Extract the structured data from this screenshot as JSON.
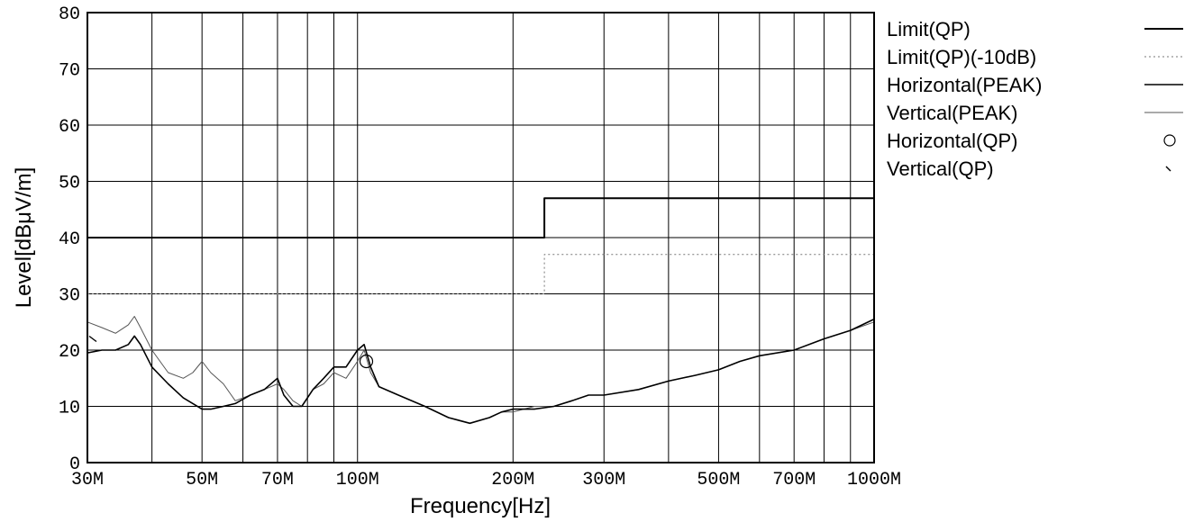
{
  "chart_data": {
    "type": "line",
    "xlabel": "Frequency[Hz]",
    "ylabel": "Level[dBμV/m]",
    "x_scale": "log",
    "xlim": [
      30,
      1000
    ],
    "ylim": [
      0,
      80
    ],
    "grid": true,
    "legend_position": "right",
    "x_minor_gridlines": [
      40,
      60,
      80,
      90,
      400,
      600,
      800,
      900
    ],
    "x_ticks": [
      {
        "value": 30,
        "label": "30M"
      },
      {
        "value": 50,
        "label": "50M"
      },
      {
        "value": 70,
        "label": "70M"
      },
      {
        "value": 100,
        "label": "100M"
      },
      {
        "value": 200,
        "label": "200M"
      },
      {
        "value": 300,
        "label": "300M"
      },
      {
        "value": 500,
        "label": "500M"
      },
      {
        "value": 700,
        "label": "700M"
      },
      {
        "value": 1000,
        "label": "1000M"
      }
    ],
    "y_ticks": [
      {
        "value": 0,
        "label": "0"
      },
      {
        "value": 10,
        "label": "10"
      },
      {
        "value": 20,
        "label": "20"
      },
      {
        "value": 30,
        "label": "30"
      },
      {
        "value": 40,
        "label": "40"
      },
      {
        "value": 50,
        "label": "50"
      },
      {
        "value": 60,
        "label": "60"
      },
      {
        "value": 70,
        "label": "70"
      },
      {
        "value": 80,
        "label": "80"
      }
    ],
    "series": [
      {
        "name": "Limit(QP)",
        "style": "solid-thick",
        "color": "#000000",
        "x": [
          30,
          230,
          230,
          1000
        ],
        "y": [
          40,
          40,
          47,
          47
        ]
      },
      {
        "name": "Limit(QP)(-10dB)",
        "style": "dotted",
        "color": "#777777",
        "x": [
          30,
          230,
          230,
          1000
        ],
        "y": [
          30,
          30,
          37,
          37
        ]
      },
      {
        "name": "Horizontal(PEAK)",
        "style": "solid",
        "color": "#000000",
        "x": [
          30,
          32,
          34,
          36,
          37,
          38,
          40,
          43,
          46,
          48,
          50,
          52,
          55,
          58,
          62,
          66,
          70,
          72,
          75,
          78,
          82,
          86,
          90,
          95,
          100,
          103,
          106,
          110,
          120,
          135,
          150,
          165,
          180,
          190,
          200,
          220,
          240,
          260,
          280,
          300,
          350,
          400,
          450,
          500,
          550,
          600,
          700,
          800,
          900,
          1000
        ],
        "y": [
          19.5,
          20,
          20,
          21,
          22.5,
          21,
          17,
          14,
          11.5,
          10.5,
          9.5,
          9.5,
          10,
          10.5,
          12,
          13,
          15,
          12,
          10,
          10,
          13,
          15,
          17,
          17,
          20,
          21,
          17,
          13.5,
          12,
          10,
          8,
          7,
          8,
          9,
          9.5,
          9.5,
          10,
          11,
          12,
          12,
          13,
          14.5,
          15.5,
          16.5,
          18,
          19,
          20,
          22,
          23.5,
          25.5
        ]
      },
      {
        "name": "Vertical(PEAK)",
        "style": "solid-thin",
        "color": "#555555",
        "x": [
          30,
          32,
          34,
          36,
          37,
          38,
          40,
          43,
          46,
          48,
          50,
          52,
          55,
          58,
          62,
          66,
          70,
          72,
          75,
          78,
          82,
          86,
          90,
          95,
          100,
          103,
          106,
          110,
          120,
          135,
          150,
          165,
          180,
          190,
          200,
          220,
          240,
          260,
          280,
          300,
          350,
          400,
          450,
          500,
          550,
          600,
          700,
          800,
          900,
          1000
        ],
        "y": [
          25,
          24,
          23,
          24.5,
          26,
          24,
          20,
          16,
          15,
          16,
          18,
          16,
          14,
          11,
          12,
          13,
          14,
          13,
          11,
          10,
          13,
          14,
          16,
          15,
          18,
          20,
          16,
          13.5,
          12,
          10,
          8,
          7,
          8,
          9,
          9,
          10,
          10,
          11,
          12,
          12,
          13,
          14.5,
          15.5,
          16.5,
          18,
          19,
          20,
          22,
          23.5,
          25
        ]
      },
      {
        "name": "Horizontal(QP)",
        "style": "circle-marker",
        "color": "#000000",
        "x": [
          104
        ],
        "y": [
          18
        ]
      },
      {
        "name": "Vertical(QP)",
        "style": "tick-marker",
        "color": "#000000",
        "x": [
          30
        ],
        "y": [
          22
        ]
      }
    ]
  }
}
